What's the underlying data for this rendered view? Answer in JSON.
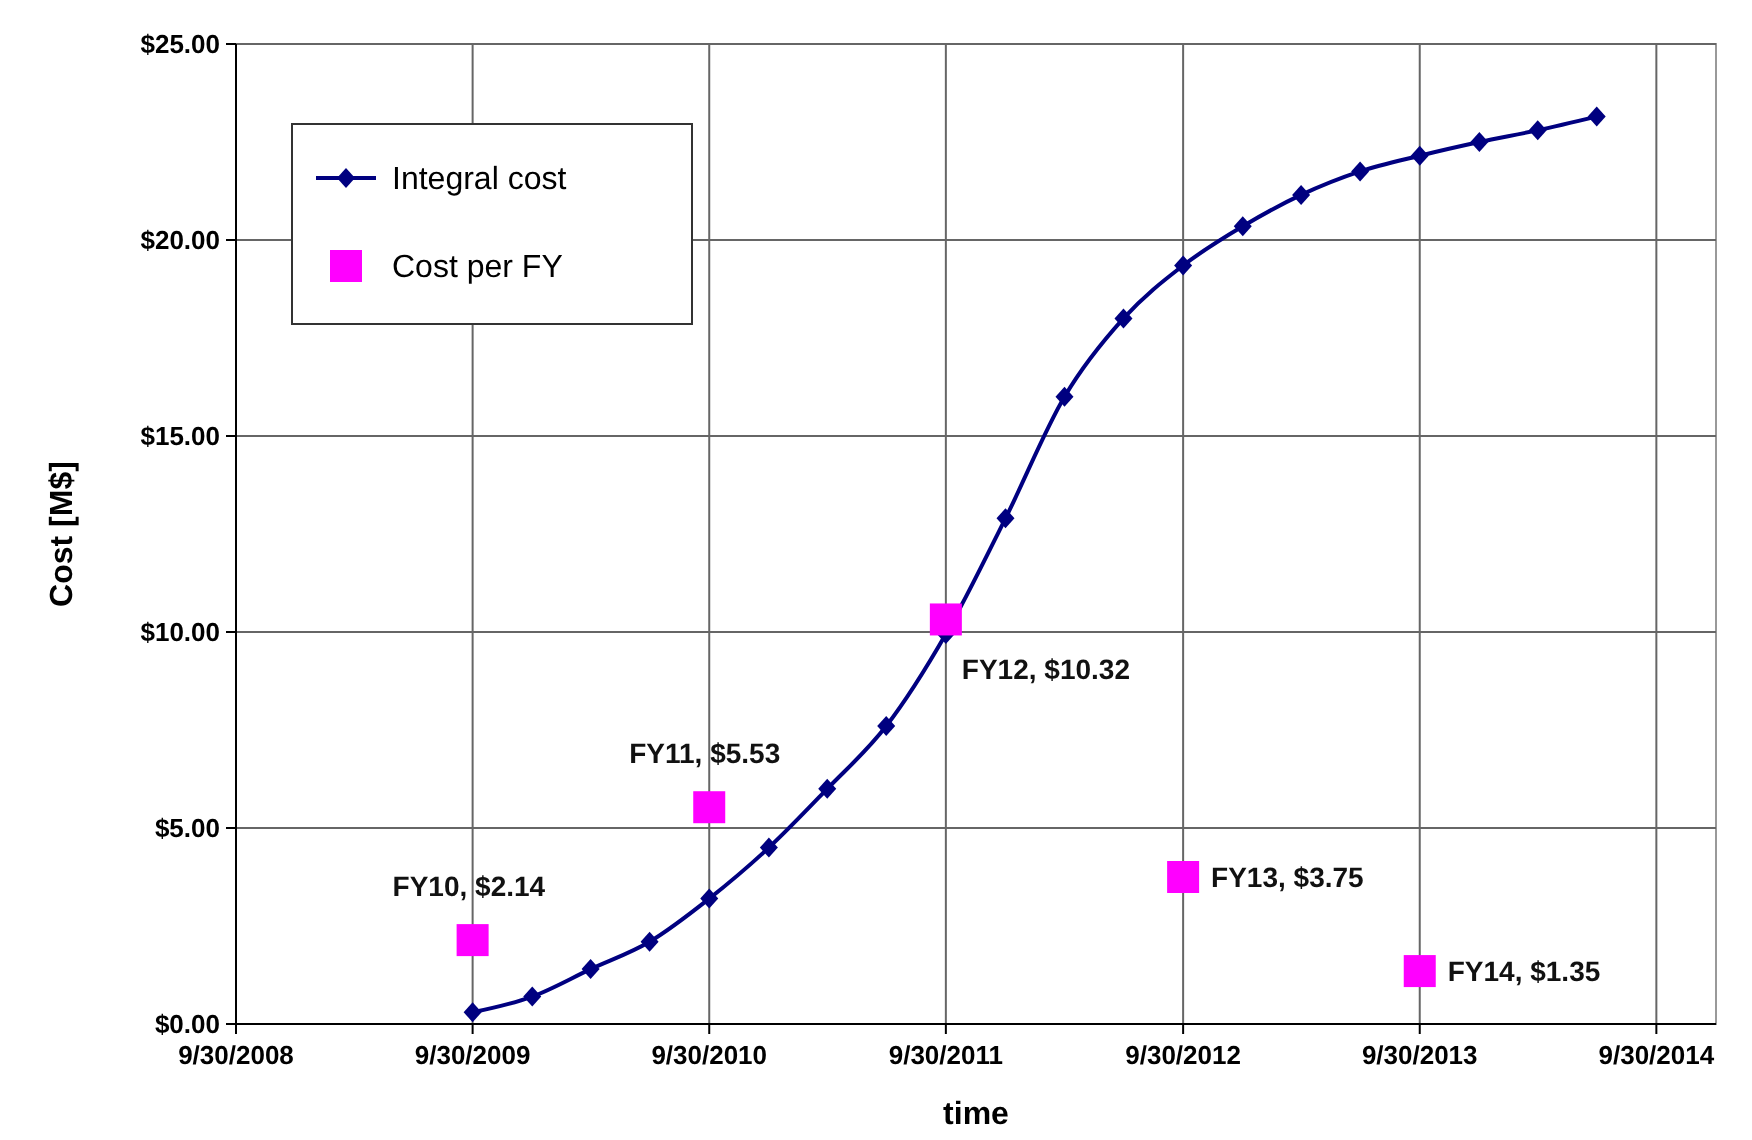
{
  "chart_data": {
    "type": "line",
    "xlabel": "time",
    "ylabel": "Cost [M$]",
    "xlim": [
      "2008-09-30",
      "2014-12-31"
    ],
    "xticks": [
      {
        "value": "2008-09-30",
        "label": "9/30/2008"
      },
      {
        "value": "2009-09-30",
        "label": "9/30/2009"
      },
      {
        "value": "2010-09-30",
        "label": "9/30/2010"
      },
      {
        "value": "2011-09-30",
        "label": "9/30/2011"
      },
      {
        "value": "2012-09-30",
        "label": "9/30/2012"
      },
      {
        "value": "2013-09-30",
        "label": "9/30/2013"
      },
      {
        "value": "2014-09-30",
        "label": "9/30/2014"
      }
    ],
    "ylim": [
      0,
      25
    ],
    "yticks": [
      {
        "value": 0,
        "label": "$0.00"
      },
      {
        "value": 5,
        "label": "$5.00"
      },
      {
        "value": 10,
        "label": "$10.00"
      },
      {
        "value": 15,
        "label": "$15.00"
      },
      {
        "value": 20,
        "label": "$20.00"
      },
      {
        "value": 25,
        "label": "$25.00"
      }
    ],
    "grid": true,
    "legend": "top left",
    "series": [
      {
        "name": "Integral cost",
        "color": "#000080",
        "marker": "diamond",
        "line_style": "solid",
        "x": [
          "2009-09-30",
          "2009-12-31",
          "2010-03-31",
          "2010-06-30",
          "2010-09-30",
          "2010-12-31",
          "2011-03-31",
          "2011-06-30",
          "2011-09-30",
          "2011-12-31",
          "2012-03-31",
          "2012-06-30",
          "2012-09-30",
          "2012-12-31",
          "2013-03-31",
          "2013-06-30",
          "2013-09-30",
          "2013-12-31",
          "2014-03-31",
          "2014-06-30"
        ],
        "values": [
          0.3,
          0.7,
          1.4,
          2.1,
          3.2,
          4.5,
          6.0,
          7.6,
          9.95,
          12.9,
          16.0,
          18.0,
          19.35,
          20.35,
          21.15,
          21.75,
          22.15,
          22.5,
          22.8,
          23.15
        ]
      },
      {
        "name": "Cost per FY",
        "type": "scatter",
        "color": "#ff00ff",
        "marker": "square",
        "x": [
          "2009-09-30",
          "2010-09-30",
          "2011-09-30",
          "2012-09-30",
          "2013-09-30"
        ],
        "values": [
          2.14,
          5.53,
          10.32,
          3.75,
          1.35
        ],
        "value_labels": [
          "FY10, $2.14",
          "FY11, $5.53",
          "FY12, $10.32",
          "FY13, $3.75",
          "FY14, $1.35"
        ]
      }
    ]
  }
}
